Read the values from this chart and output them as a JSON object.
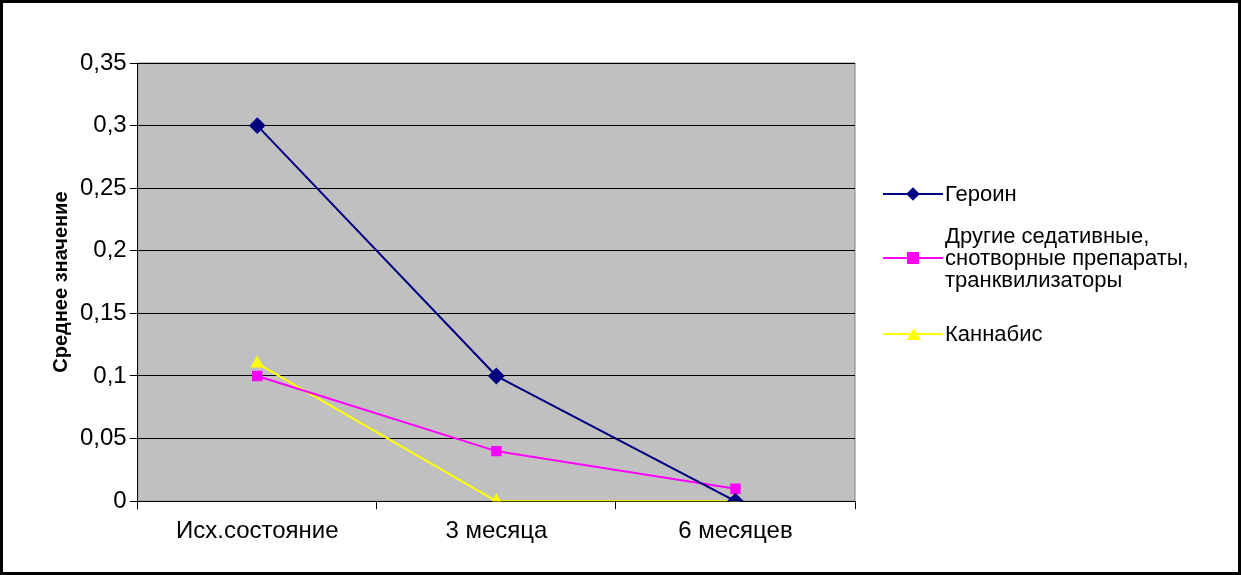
{
  "chart_data": {
    "type": "line",
    "ylabel": "Среднее значение",
    "categories": [
      "Исх.состояние",
      "3 месяца",
      "6 месяцев"
    ],
    "series": [
      {
        "name": "Героин",
        "color": "#000080",
        "marker": "diamond",
        "values": [
          0.3,
          0.1,
          0
        ]
      },
      {
        "name": "Другие седативные, снотворные препараты, транквилизаторы",
        "color": "#ff00ff",
        "marker": "square",
        "values": [
          0.1,
          0.04,
          0.01
        ]
      },
      {
        "name": "Каннабис",
        "color": "#ffff00",
        "marker": "triangle",
        "values": [
          0.11,
          0,
          0
        ]
      }
    ],
    "ylim": [
      0,
      0.35
    ],
    "yticks": [
      {
        "value": 0,
        "label": "0"
      },
      {
        "value": 0.05,
        "label": "0,05"
      },
      {
        "value": 0.1,
        "label": "0,1"
      },
      {
        "value": 0.15,
        "label": "0,15"
      },
      {
        "value": 0.2,
        "label": "0,2"
      },
      {
        "value": 0.25,
        "label": "0,25"
      },
      {
        "value": 0.3,
        "label": "0,3"
      },
      {
        "value": 0.35,
        "label": "0,35"
      }
    ],
    "grid": "y",
    "legend": "right",
    "line_style": "solid"
  }
}
